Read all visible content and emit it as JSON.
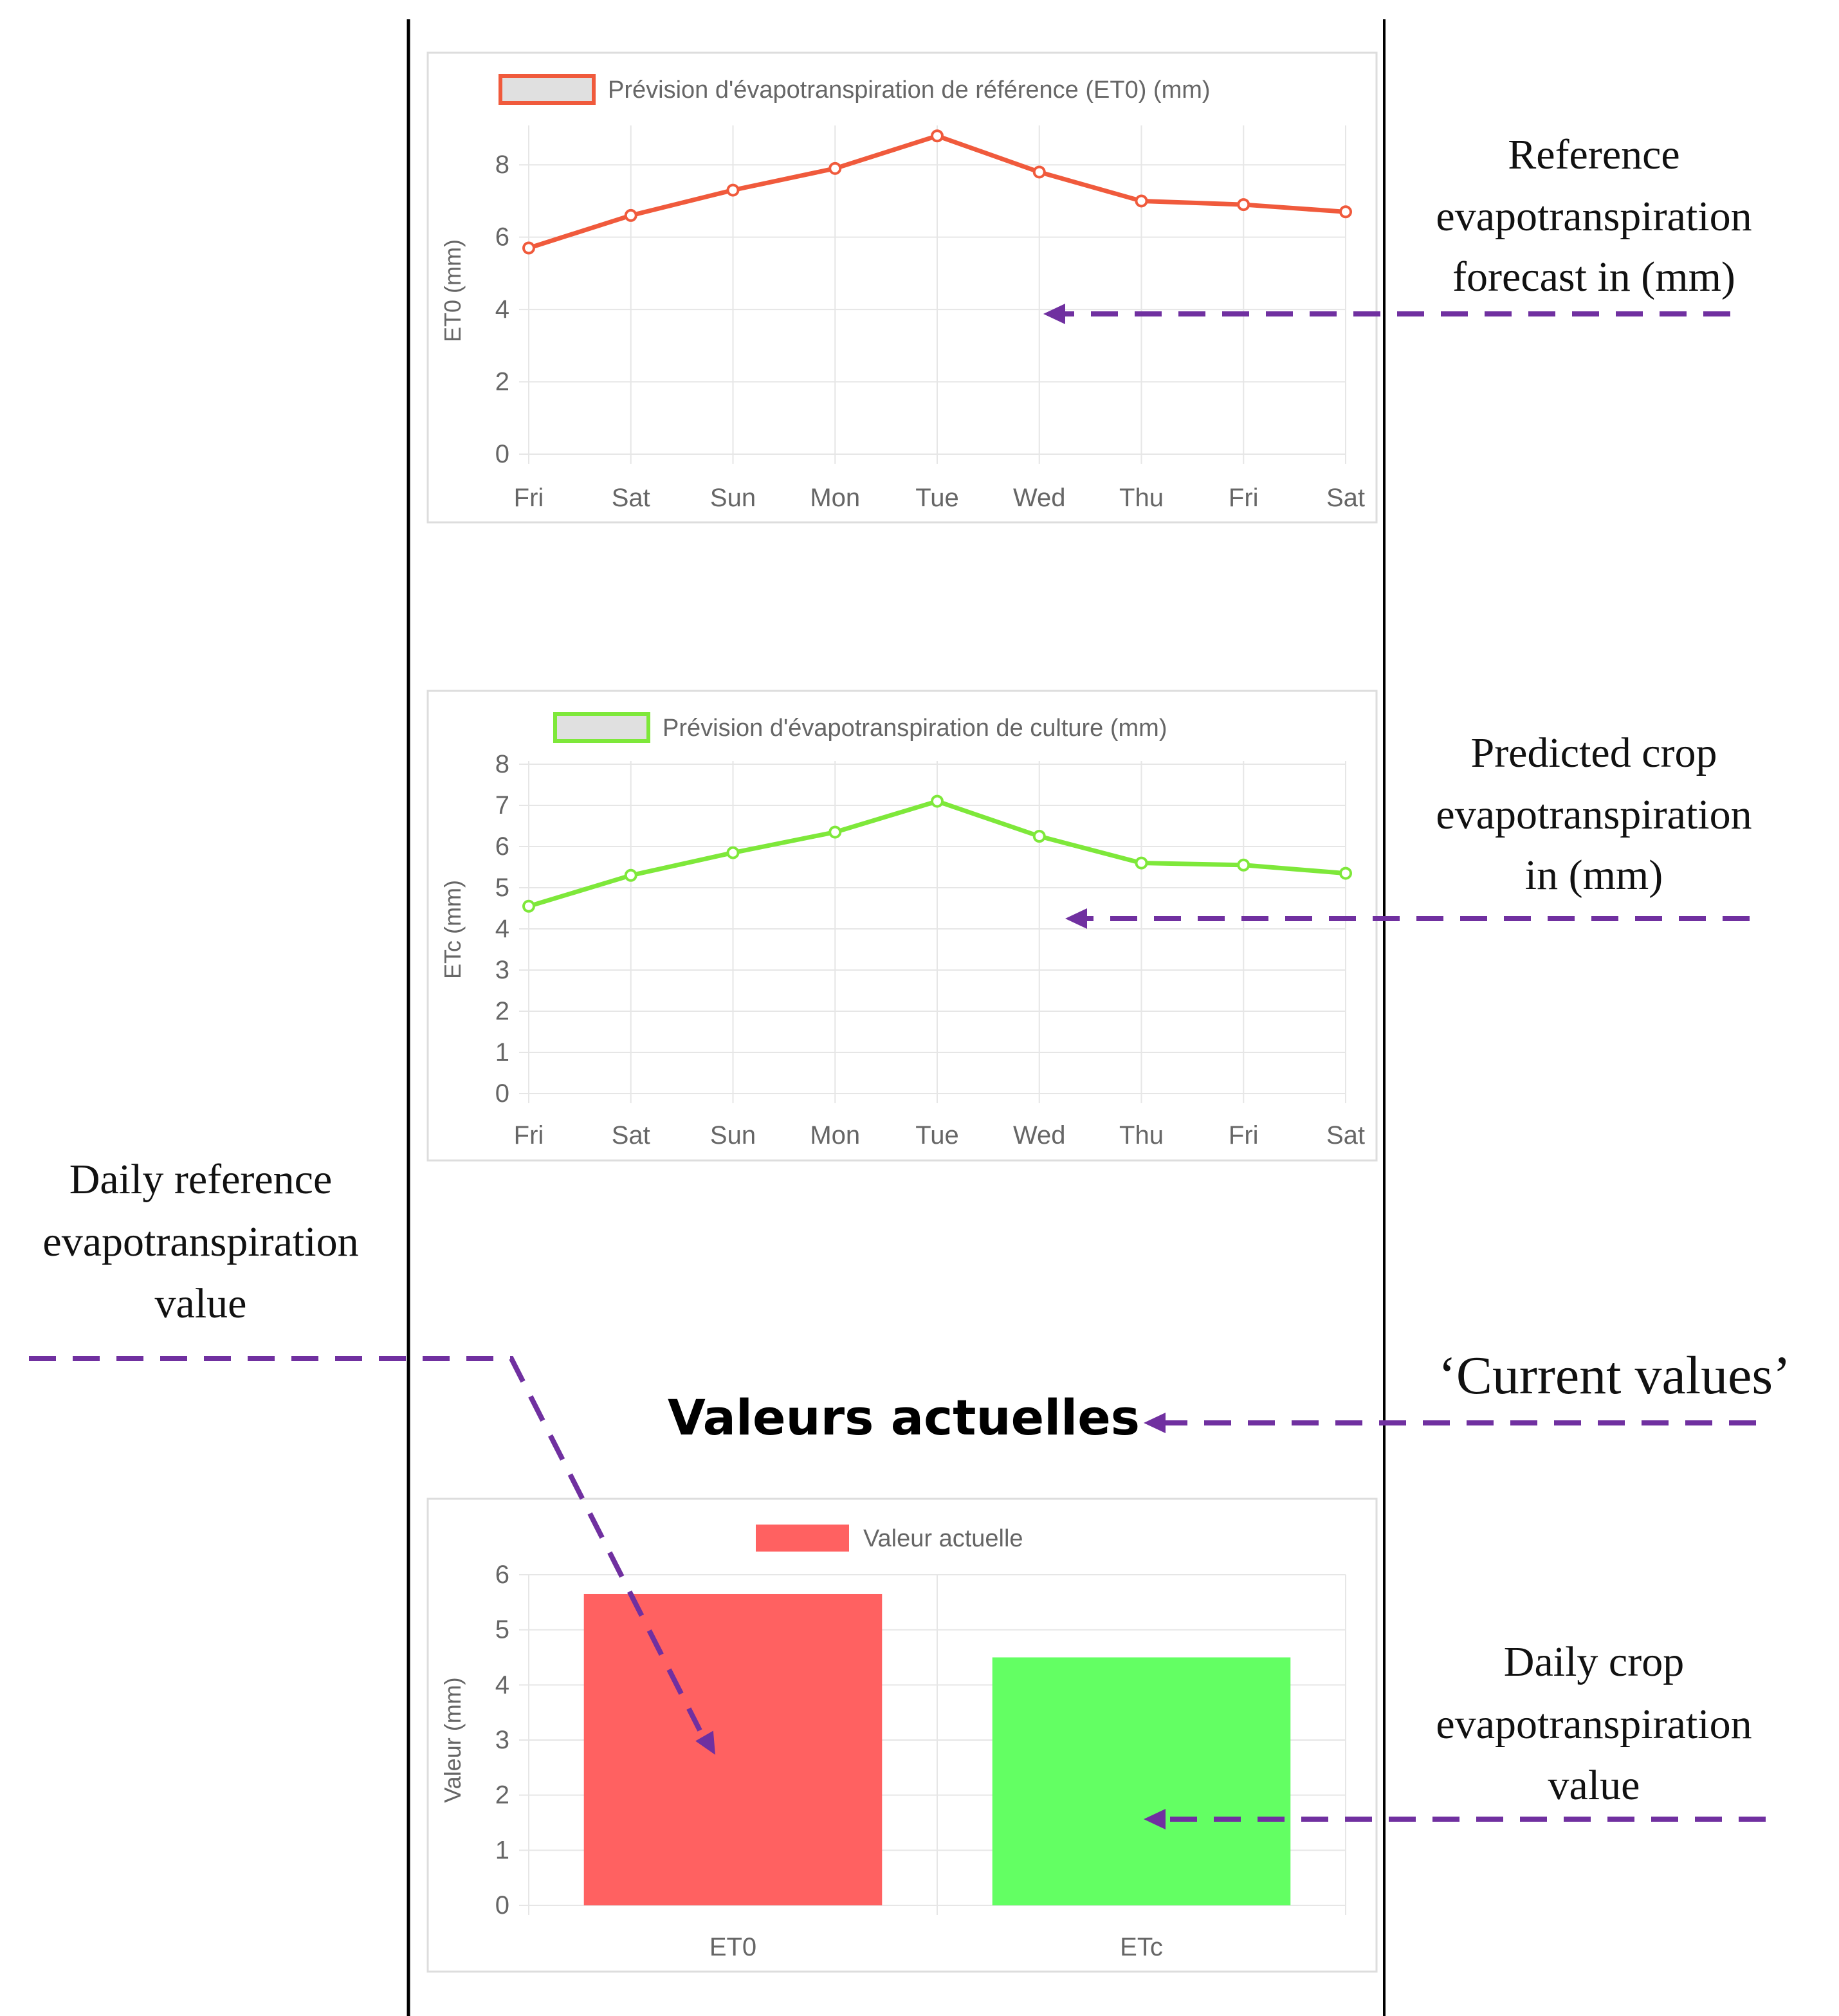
{
  "colors": {
    "et0": "#f05a3c",
    "etc": "#7ee83a",
    "bar_et0": "#ff6161",
    "bar_etc": "#63ff63",
    "arrow": "#7030a0",
    "grid": "#e6e6e6",
    "legend_fill": "#e0e0e0"
  },
  "section_title": "Valeurs actuelles",
  "annotations": {
    "ref_forecast": [
      "Reference",
      "evapotranspiration",
      "forecast in (mm)"
    ],
    "crop_forecast": [
      "Predicted crop",
      "evapotranspiration",
      "in (mm)"
    ],
    "daily_ref": [
      "Daily reference",
      "evapotranspiration",
      "value"
    ],
    "current_values": "‘Current values’",
    "daily_crop": [
      "Daily crop",
      "evapotranspiration",
      "value"
    ]
  },
  "chart_data": [
    {
      "type": "line",
      "legend": "Prévision d'évapotranspiration de référence (ET0) (mm)",
      "ylabel": "ET0 (mm)",
      "xlabel": "",
      "categories": [
        "Fri",
        "Sat",
        "Sun",
        "Mon",
        "Tue",
        "Wed",
        "Thu",
        "Fri",
        "Sat"
      ],
      "values": [
        5.7,
        6.6,
        7.3,
        7.9,
        8.8,
        7.8,
        7.0,
        6.9,
        6.7
      ],
      "ylim": [
        0,
        9
      ],
      "yticks": [
        "0",
        "2",
        "4",
        "6",
        "8"
      ],
      "grid": true
    },
    {
      "type": "line",
      "legend": "Prévision d'évapotranspiration de culture (mm)",
      "ylabel": "ETc (mm)",
      "xlabel": "",
      "categories": [
        "Fri",
        "Sat",
        "Sun",
        "Mon",
        "Tue",
        "Wed",
        "Thu",
        "Fri",
        "Sat"
      ],
      "values": [
        4.55,
        5.3,
        5.85,
        6.35,
        7.1,
        6.25,
        5.6,
        5.55,
        5.35
      ],
      "ylim": [
        0,
        8
      ],
      "yticks": [
        "0",
        "1",
        "2",
        "3",
        "4",
        "5",
        "6",
        "7",
        "8"
      ],
      "grid": true
    },
    {
      "type": "bar",
      "legend": "Valeur actuelle",
      "ylabel": "Valeur (mm)",
      "xlabel": "",
      "categories": [
        "ET0",
        "ETc"
      ],
      "values": [
        5.65,
        4.5
      ],
      "ylim": [
        0,
        6
      ],
      "yticks": [
        "0",
        "1",
        "2",
        "3",
        "4",
        "5",
        "6"
      ],
      "grid": true
    }
  ]
}
